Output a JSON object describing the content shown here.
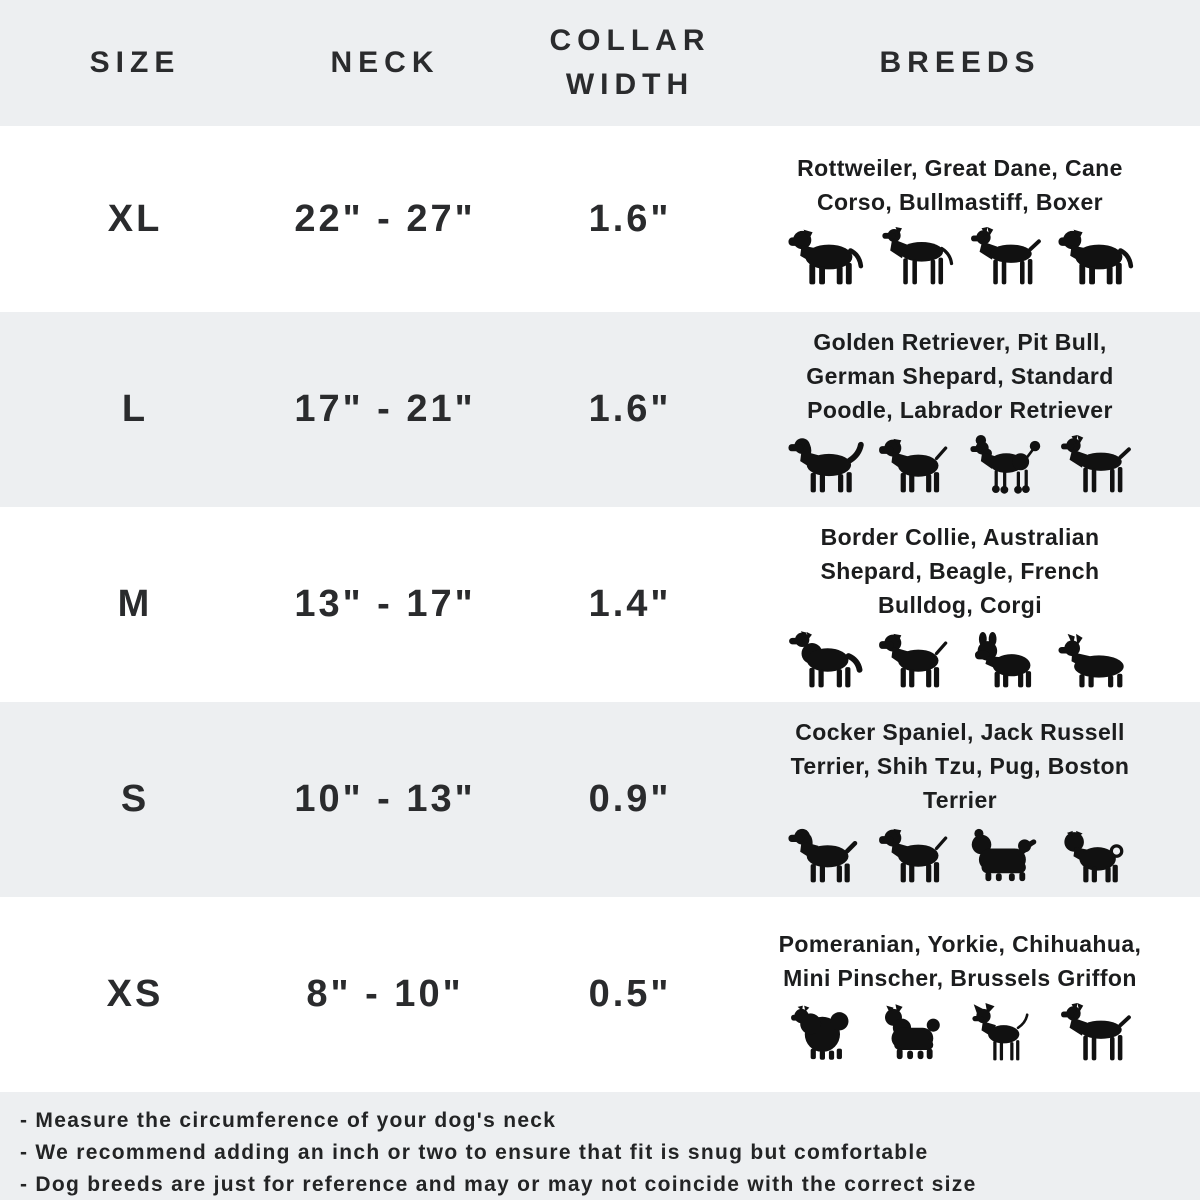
{
  "table": {
    "columns": [
      "SIZE",
      "NECK",
      "COLLAR WIDTH",
      "BREEDS"
    ],
    "rows": [
      {
        "size": "XL",
        "neck": "22\" - 27\"",
        "collar_width": "1.6\"",
        "breeds": "Rottweiler, Great Dane, Cane Corso, Bullmastiff, Boxer",
        "icons": [
          "rottweiler",
          "great-dane",
          "cane-corso",
          "bullmastiff"
        ]
      },
      {
        "size": "L",
        "neck": "17\" - 21\"",
        "collar_width": "1.6\"",
        "breeds": "Golden Retriever, Pit Bull, German Shepard, Standard Poodle, Labrador Retriever",
        "icons": [
          "golden-retriever",
          "pit-bull",
          "standard-poodle",
          "german-shepard"
        ]
      },
      {
        "size": "M",
        "neck": "13\" - 17\"",
        "collar_width": "1.4\"",
        "breeds": "Border Collie, Australian Shepard, Beagle, French Bulldog, Corgi",
        "icons": [
          "border-collie",
          "australian-shepard",
          "french-bulldog",
          "corgi"
        ]
      },
      {
        "size": "S",
        "neck": "10\" - 13\"",
        "collar_width": "0.9\"",
        "breeds": "Cocker Spaniel, Jack Russell Terrier, Shih Tzu, Pug, Boston Terrier",
        "icons": [
          "cocker-spaniel",
          "jack-russell-terrier",
          "shih-tzu",
          "pug"
        ]
      },
      {
        "size": "XS",
        "neck": "8\" - 10\"",
        "collar_width": "0.5\"",
        "breeds": "Pomeranian, Yorkie, Chihuahua, Mini Pinscher, Brussels Griffon",
        "icons": [
          "pomeranian",
          "yorkie",
          "chihuahua",
          "mini-pinscher"
        ]
      }
    ]
  },
  "notes": [
    "- Measure the circumference of your dog's neck",
    "- We recommend adding an inch or two to ensure that fit is snug but comfortable",
    "- Dog breeds are just for reference and may or may not coincide with the correct size"
  ],
  "colors": {
    "row_alt": "#edeff1",
    "row": "#ffffff",
    "heading_text": "#2a2b2d",
    "breeds_text": "#1c1d1e",
    "silhouette": "#111111"
  }
}
